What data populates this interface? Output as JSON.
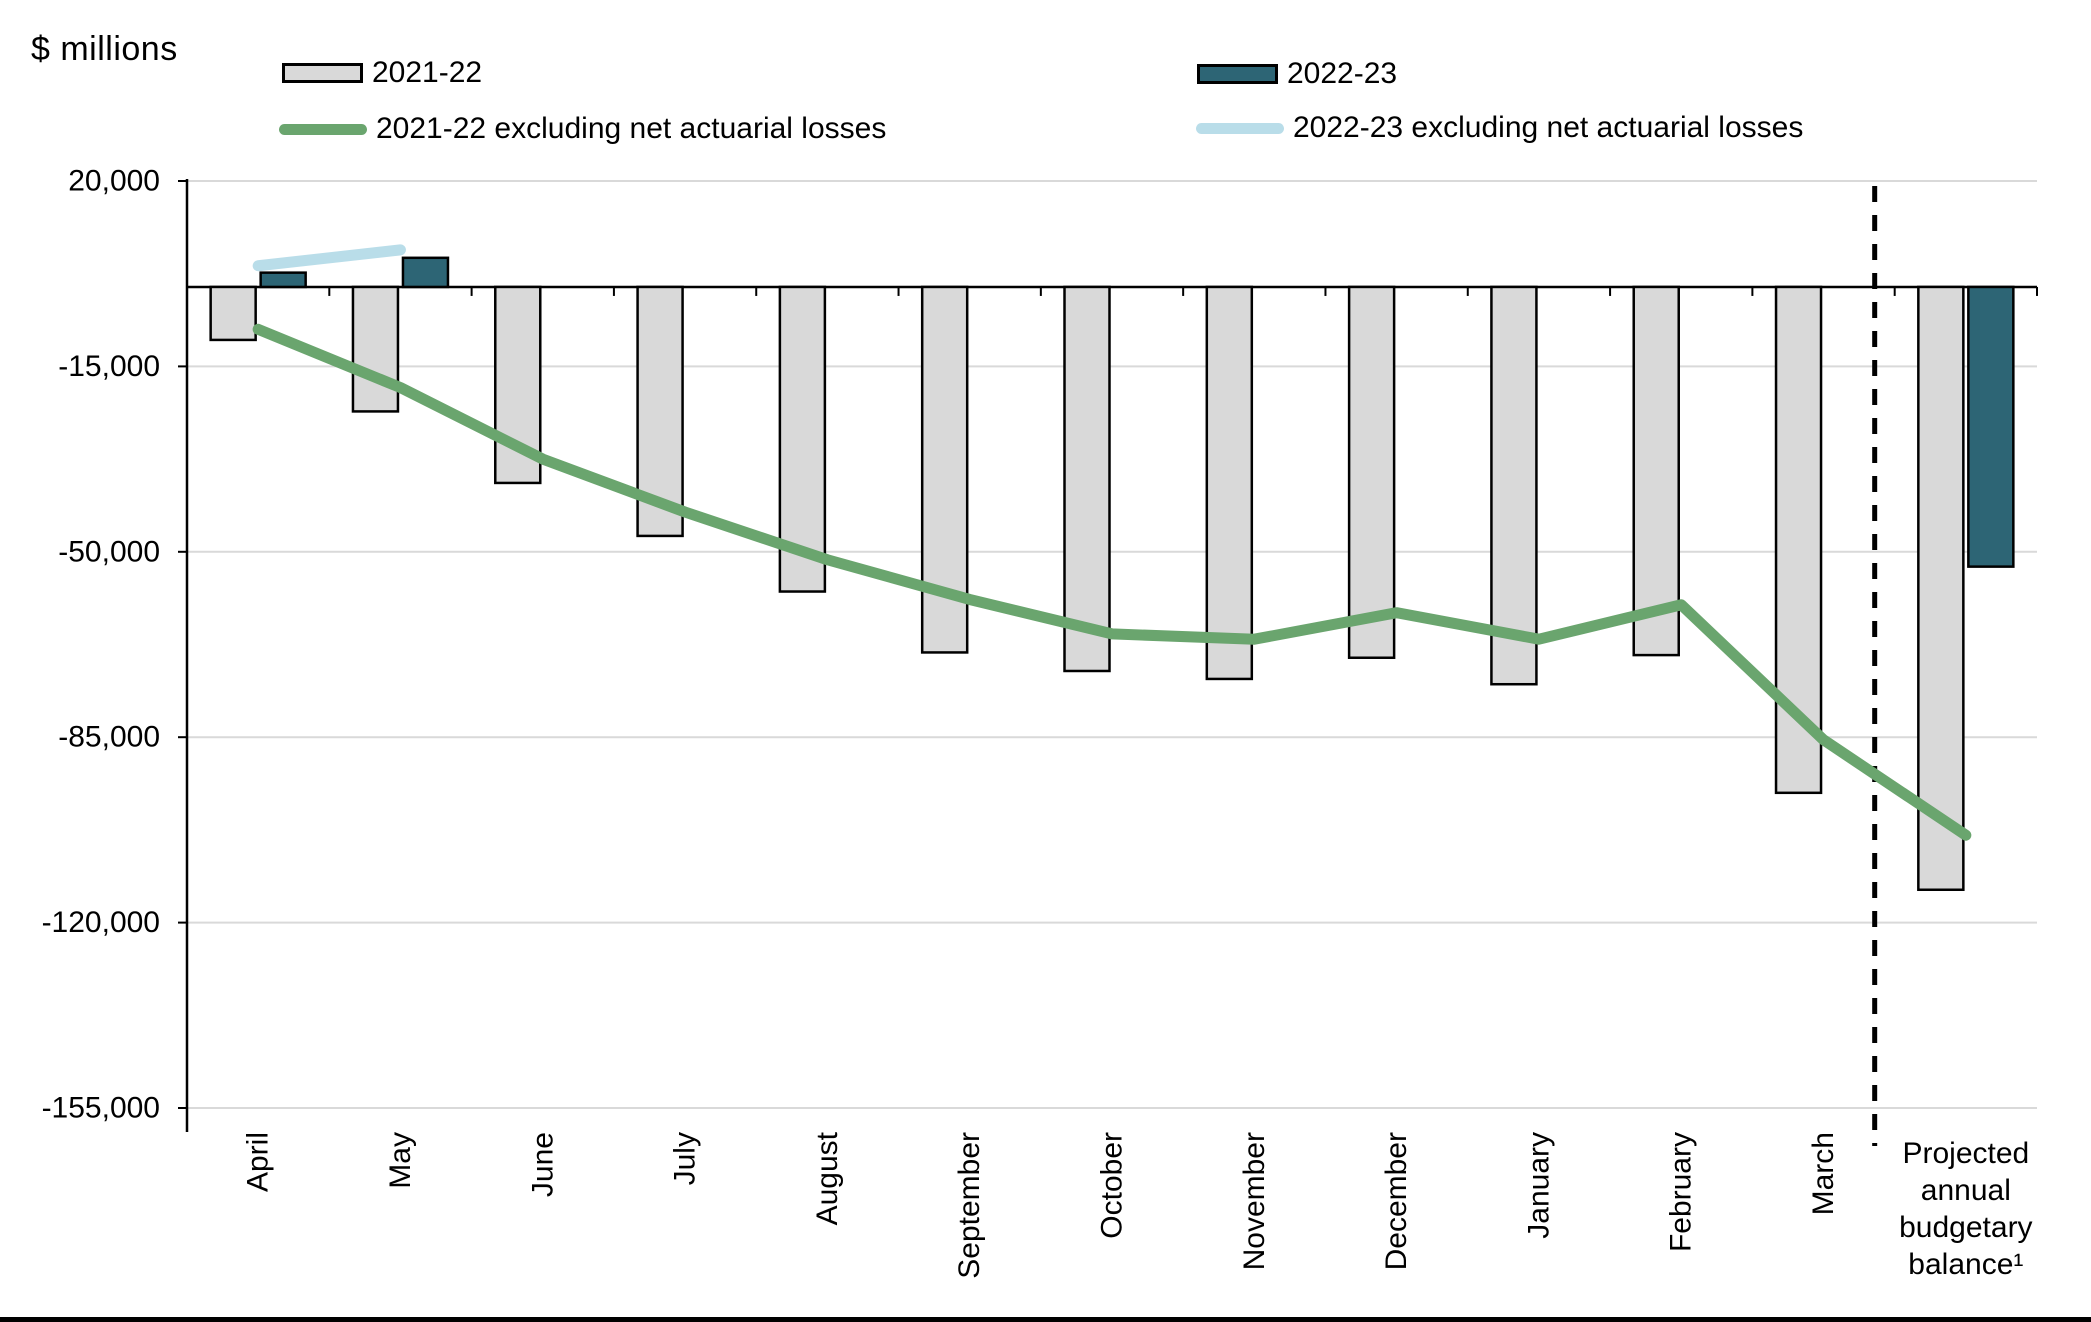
{
  "title": "$ millions",
  "legend": [
    {
      "label": "2021-22",
      "type": "bar",
      "color": "#d9d9d9",
      "border": "#000000"
    },
    {
      "label": "2022-23",
      "type": "bar",
      "color": "#2d6575",
      "border": "#000000"
    },
    {
      "label": "2021-22 excluding net actuarial losses",
      "type": "line",
      "color": "#6aa56e"
    },
    {
      "label": "2022-23 excluding net actuarial losses",
      "type": "line",
      "color": "#b9dde9"
    }
  ],
  "chart_data": {
    "type": "bar",
    "subtype": "clustered bars with overlaid lines, monthly cumulative budgetary balance",
    "title": "$ millions",
    "xlabel": "",
    "ylabel": "$ millions",
    "ylim": [
      -155000,
      20000
    ],
    "yticks": [
      20000,
      -15000,
      -50000,
      -85000,
      -120000,
      -155000
    ],
    "ytick_labels": [
      "20,000",
      "-15,000",
      "-50,000",
      "-85,000",
      "-120,000",
      "-155,000"
    ],
    "grid": true,
    "gridline_color": "#d9d9d9",
    "zero_line_color": "#000000",
    "legend_position": "top",
    "categories": [
      "April",
      "May",
      "June",
      "July",
      "August",
      "September",
      "October",
      "November",
      "December",
      "January",
      "February",
      "March",
      "Projected annual budgetary balance¹"
    ],
    "last_category_lines": [
      "Projected",
      "annual",
      "budgetary",
      "balance¹"
    ],
    "x_label_style": "months rotated 90° reading bottom-to-top; final category horizontal multi-line",
    "separator": {
      "style": "dashed vertical line",
      "position": "between March and Projected annual budgetary balance",
      "color": "#000000"
    },
    "series": [
      {
        "name": "2021-22",
        "type": "bar",
        "color": "#d9d9d9",
        "border": "#000000",
        "values": [
          -10000,
          -23500,
          -37000,
          -47000,
          -57500,
          -69000,
          -72500,
          -74000,
          -70000,
          -75000,
          -69500,
          -95500,
          -113800
        ]
      },
      {
        "name": "2022-23",
        "type": "bar",
        "color": "#2d6575",
        "border": "#000000",
        "values": [
          2700,
          5500,
          null,
          null,
          null,
          null,
          null,
          null,
          null,
          null,
          null,
          null,
          -52800
        ]
      },
      {
        "name": "2021-22 excluding net actuarial losses",
        "type": "line",
        "color": "#6aa56e",
        "values": [
          -8000,
          -19000,
          -32500,
          -42500,
          -51500,
          -59000,
          -65500,
          -66500,
          -61500,
          -66500,
          -60000,
          -85500,
          -103500
        ]
      },
      {
        "name": "2022-23 excluding net actuarial losses",
        "type": "line",
        "color": "#b9dde9",
        "values": [
          4000,
          7000,
          null,
          null,
          null,
          null,
          null,
          null,
          null,
          null,
          null,
          null,
          null
        ]
      }
    ]
  }
}
